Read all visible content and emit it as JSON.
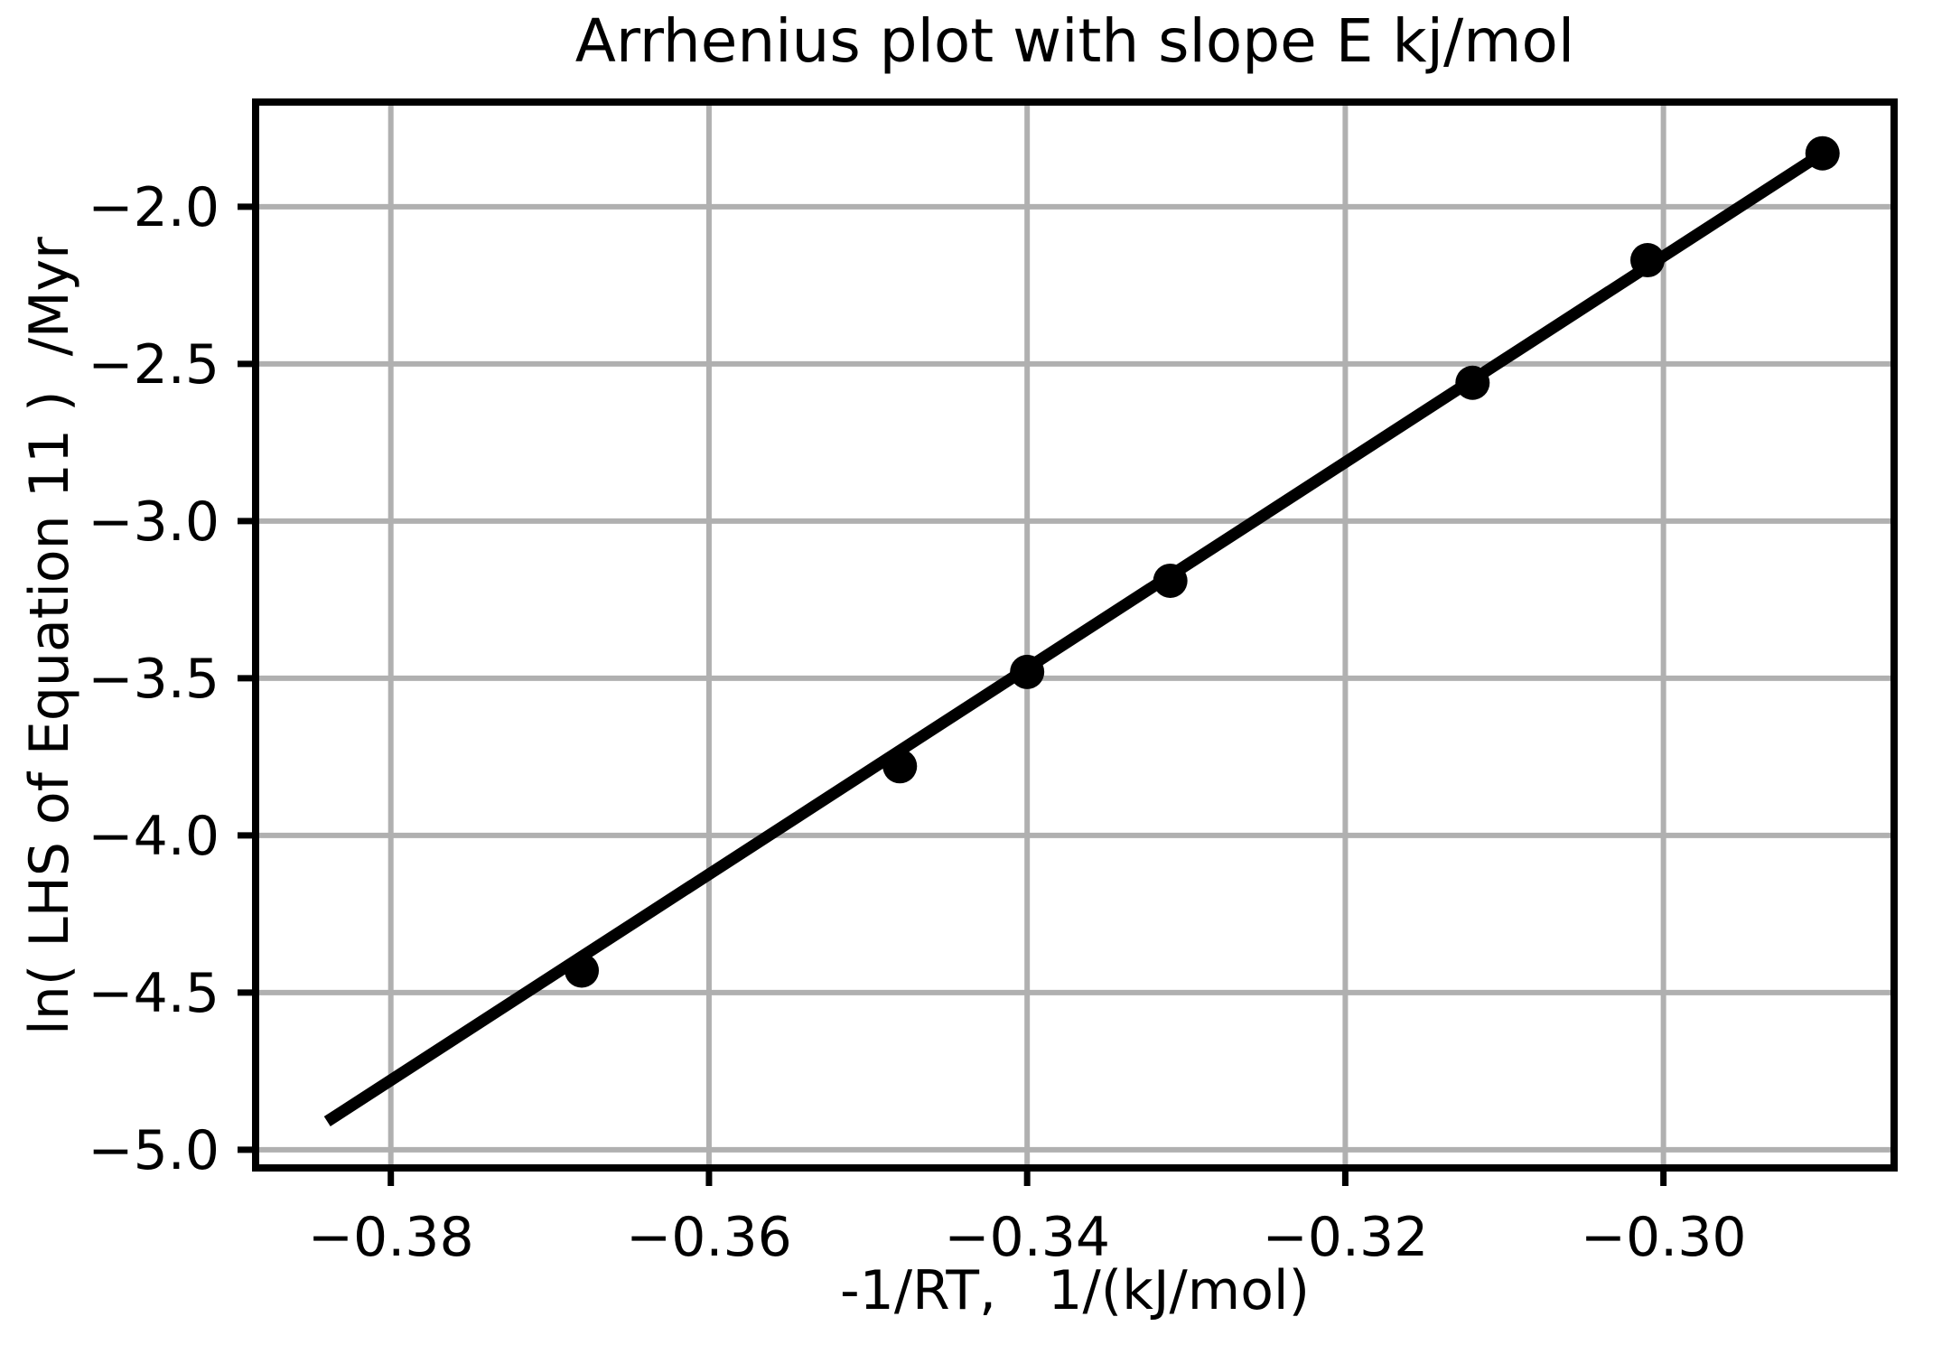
{
  "chart_data": {
    "type": "scatter",
    "title": "Arrhenius plot with slope E kj/mol",
    "xlabel": "-1/RT,   1/(kJ/mol)",
    "ylabel": "ln( LHS of Equation 11 )  /Myr",
    "xlim": [
      -0.3885,
      -0.2855
    ],
    "ylim": [
      -5.058,
      -1.667
    ],
    "grid": true,
    "legend": "none",
    "xticks": {
      "values": [
        -0.38,
        -0.36,
        -0.34,
        -0.32,
        -0.3
      ],
      "labels": [
        "−0.38",
        "−0.36",
        "−0.34",
        "−0.32",
        "−0.30"
      ]
    },
    "yticks": {
      "values": [
        -2.0,
        -2.5,
        -3.0,
        -3.5,
        -4.0,
        -4.5,
        -5.0
      ],
      "labels": [
        "−2.0",
        "−2.5",
        "−3.0",
        "−3.5",
        "−4.0",
        "−4.5",
        "−5.0"
      ]
    },
    "series": [
      {
        "name": "data-points",
        "style": "markers",
        "marker": "circle",
        "points": [
          {
            "x": -0.368,
            "y": -4.43
          },
          {
            "x": -0.348,
            "y": -3.78
          },
          {
            "x": -0.34,
            "y": -3.48
          },
          {
            "x": -0.331,
            "y": -3.19
          },
          {
            "x": -0.312,
            "y": -2.56
          },
          {
            "x": -0.301,
            "y": -2.17
          },
          {
            "x": -0.29,
            "y": -1.83
          }
        ]
      },
      {
        "name": "fit-line",
        "style": "line",
        "slope_E_kj_per_mol": 32.8,
        "points": [
          {
            "x": -0.384,
            "y": -4.91
          },
          {
            "x": -0.29,
            "y": -1.83
          }
        ]
      }
    ],
    "colors": {
      "background": "#ffffff",
      "data": "#000000",
      "grid": "#b0b0b0",
      "spine": "#000000",
      "text": "#000000"
    }
  }
}
